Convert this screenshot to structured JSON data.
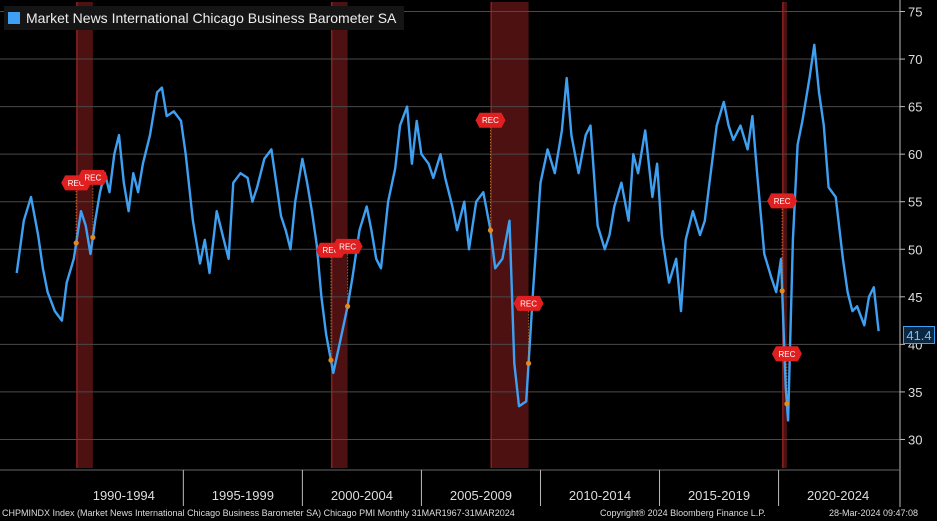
{
  "chart_data": {
    "type": "line",
    "title": "Market News International Chicago Business Barometer SA",
    "series": [
      {
        "name": "Market News International Chicago Business Barometer SA",
        "color": "#3ea0f2",
        "points": [
          [
            1988.0,
            47.5
          ],
          [
            1988.3,
            53.0
          ],
          [
            1988.6,
            55.5
          ],
          [
            1988.9,
            51.5
          ],
          [
            1989.1,
            48.0
          ],
          [
            1989.3,
            45.5
          ],
          [
            1989.6,
            43.5
          ],
          [
            1989.9,
            42.5
          ],
          [
            1990.1,
            46.5
          ],
          [
            1990.4,
            49.0
          ],
          [
            1990.7,
            54.0
          ],
          [
            1990.9,
            52.5
          ],
          [
            1991.1,
            49.5
          ],
          [
            1991.3,
            53.0
          ],
          [
            1991.5,
            56.0
          ],
          [
            1991.7,
            58.0
          ],
          [
            1991.9,
            56.0
          ],
          [
            1992.1,
            60.0
          ],
          [
            1992.3,
            62.0
          ],
          [
            1992.5,
            57.0
          ],
          [
            1992.7,
            54.0
          ],
          [
            1992.9,
            58.0
          ],
          [
            1993.1,
            56.0
          ],
          [
            1993.3,
            59.0
          ],
          [
            1993.6,
            62.0
          ],
          [
            1993.9,
            66.5
          ],
          [
            1994.1,
            67.0
          ],
          [
            1994.3,
            64.0
          ],
          [
            1994.6,
            64.5
          ],
          [
            1994.9,
            63.5
          ],
          [
            1995.1,
            60.0
          ],
          [
            1995.4,
            53.0
          ],
          [
            1995.7,
            48.5
          ],
          [
            1995.9,
            51.0
          ],
          [
            1996.1,
            47.5
          ],
          [
            1996.4,
            54.0
          ],
          [
            1996.7,
            51.0
          ],
          [
            1996.9,
            49.0
          ],
          [
            1997.1,
            57.0
          ],
          [
            1997.4,
            58.0
          ],
          [
            1997.7,
            57.5
          ],
          [
            1997.9,
            55.0
          ],
          [
            1998.1,
            56.5
          ],
          [
            1998.4,
            59.5
          ],
          [
            1998.7,
            60.5
          ],
          [
            1998.9,
            57.0
          ],
          [
            1999.1,
            53.5
          ],
          [
            1999.3,
            52.0
          ],
          [
            1999.5,
            50.0
          ],
          [
            1999.7,
            55.0
          ],
          [
            2000.0,
            59.5
          ],
          [
            2000.2,
            57.0
          ],
          [
            2000.4,
            54.0
          ],
          [
            2000.6,
            50.5
          ],
          [
            2000.8,
            45.0
          ],
          [
            2001.0,
            41.0
          ],
          [
            2001.3,
            37.0
          ],
          [
            2001.6,
            40.5
          ],
          [
            2001.9,
            44.0
          ],
          [
            2002.1,
            47.0
          ],
          [
            2002.4,
            52.0
          ],
          [
            2002.7,
            54.5
          ],
          [
            2002.9,
            52.0
          ],
          [
            2003.1,
            49.0
          ],
          [
            2003.3,
            48.0
          ],
          [
            2003.6,
            55.0
          ],
          [
            2003.9,
            58.5
          ],
          [
            2004.1,
            63.0
          ],
          [
            2004.4,
            65.0
          ],
          [
            2004.6,
            59.0
          ],
          [
            2004.8,
            63.5
          ],
          [
            2005.0,
            60.0
          ],
          [
            2005.3,
            59.0
          ],
          [
            2005.5,
            57.5
          ],
          [
            2005.8,
            60.0
          ],
          [
            2006.0,
            57.5
          ],
          [
            2006.3,
            54.5
          ],
          [
            2006.5,
            52.0
          ],
          [
            2006.8,
            55.0
          ],
          [
            2007.0,
            50.0
          ],
          [
            2007.3,
            55.0
          ],
          [
            2007.6,
            56.0
          ],
          [
            2007.9,
            52.0
          ],
          [
            2008.1,
            48.0
          ],
          [
            2008.4,
            49.0
          ],
          [
            2008.7,
            53.0
          ],
          [
            2008.9,
            38.0
          ],
          [
            2009.1,
            33.5
          ],
          [
            2009.4,
            34.0
          ],
          [
            2009.7,
            46.0
          ],
          [
            2010.0,
            57.0
          ],
          [
            2010.3,
            60.5
          ],
          [
            2010.6,
            58.0
          ],
          [
            2010.9,
            62.5
          ],
          [
            2011.1,
            68.0
          ],
          [
            2011.3,
            62.0
          ],
          [
            2011.6,
            58.0
          ],
          [
            2011.9,
            62.0
          ],
          [
            2012.1,
            63.0
          ],
          [
            2012.4,
            52.5
          ],
          [
            2012.7,
            50.0
          ],
          [
            2012.9,
            51.5
          ],
          [
            2013.1,
            54.5
          ],
          [
            2013.4,
            57.0
          ],
          [
            2013.7,
            53.0
          ],
          [
            2013.9,
            60.0
          ],
          [
            2014.1,
            58.0
          ],
          [
            2014.4,
            62.5
          ],
          [
            2014.7,
            55.5
          ],
          [
            2014.9,
            59.0
          ],
          [
            2015.1,
            51.5
          ],
          [
            2015.4,
            46.5
          ],
          [
            2015.7,
            49.0
          ],
          [
            2015.9,
            43.5
          ],
          [
            2016.1,
            51.0
          ],
          [
            2016.4,
            54.0
          ],
          [
            2016.7,
            51.5
          ],
          [
            2016.9,
            53.0
          ],
          [
            2017.1,
            57.0
          ],
          [
            2017.4,
            63.0
          ],
          [
            2017.7,
            65.5
          ],
          [
            2017.9,
            63.0
          ],
          [
            2018.1,
            61.5
          ],
          [
            2018.4,
            63.0
          ],
          [
            2018.7,
            60.5
          ],
          [
            2018.9,
            64.0
          ],
          [
            2019.1,
            58.0
          ],
          [
            2019.4,
            49.5
          ],
          [
            2019.7,
            47.0
          ],
          [
            2019.9,
            45.5
          ],
          [
            2020.1,
            49.0
          ],
          [
            2020.3,
            35.5
          ],
          [
            2020.4,
            32.0
          ],
          [
            2020.6,
            51.0
          ],
          [
            2020.8,
            61.0
          ],
          [
            2021.0,
            63.5
          ],
          [
            2021.3,
            68.0
          ],
          [
            2021.5,
            71.5
          ],
          [
            2021.7,
            66.5
          ],
          [
            2021.9,
            63.0
          ],
          [
            2022.1,
            56.5
          ],
          [
            2022.4,
            55.5
          ],
          [
            2022.7,
            49.0
          ],
          [
            2022.9,
            45.5
          ],
          [
            2023.1,
            43.5
          ],
          [
            2023.3,
            44.0
          ],
          [
            2023.6,
            42.0
          ],
          [
            2023.8,
            45.0
          ],
          [
            2024.0,
            46.0
          ],
          [
            2024.2,
            41.4
          ]
        ]
      }
    ],
    "ylim": [
      27.0,
      76.0
    ],
    "yticks": [
      30,
      35,
      40,
      45,
      50,
      55,
      60,
      65,
      70,
      75
    ],
    "x_periods": [
      "1990-1994",
      "1995-1999",
      "2000-2004",
      "2005-2009",
      "2010-2014",
      "2015-2019",
      "2020-2024"
    ],
    "recessions": [
      [
        1990.5,
        1991.2
      ],
      [
        2001.2,
        2001.9
      ],
      [
        2007.9,
        2009.5
      ],
      [
        2020.15,
        2020.35
      ]
    ],
    "rec_label": "REC",
    "last_value": "41.4",
    "grid": true,
    "legend_position": "top-left"
  },
  "footer": {
    "left": "CHPMINDX Index (Market News International Chicago Business Barometer SA) Chicago PMI  Monthly 31MAR1967-31MAR2024",
    "center": "Copyright® 2024 Bloomberg Finance L.P.",
    "right": "28-Mar-2024 09:47:08"
  }
}
